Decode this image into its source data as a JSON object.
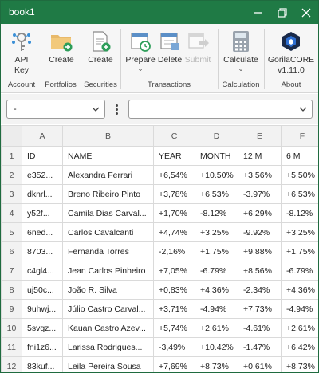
{
  "window": {
    "title": "book1"
  },
  "ribbon": {
    "buttons": {
      "api_key": "API\nKey",
      "portfolios_create": "Create",
      "securities_create": "Create",
      "prepare": "Prepare",
      "delete": "Delete",
      "submit": "Submit",
      "calculate": "Calculate",
      "about": "GorilaCORE\nv1.11.0"
    },
    "groups": {
      "account": "Account",
      "portfolios": "Portfolios",
      "securities": "Securities",
      "transactions": "Transactions",
      "calculation": "Calculation",
      "about": "About"
    },
    "icons": [
      "key-icon",
      "folder-add-icon",
      "document-add-icon",
      "calendar-refresh-icon",
      "calendar-delete-icon",
      "calendar-forward-icon",
      "calculator-icon",
      "gorila-logo"
    ]
  },
  "filters": {
    "left_combo_value": "-",
    "right_combo_value": ""
  },
  "sheet": {
    "columns": [
      "A",
      "B",
      "C",
      "D",
      "E",
      "F"
    ],
    "rows": [
      {
        "num": "1",
        "cells": [
          "ID",
          "NAME",
          "YEAR",
          "MONTH",
          "12 M",
          "6 M"
        ]
      },
      {
        "num": "2",
        "cells": [
          "e352...",
          "Alexandra Ferrari",
          "+6,54%",
          "+10.50%",
          "+3.56%",
          "+5.50%"
        ]
      },
      {
        "num": "3",
        "cells": [
          "dknrl...",
          "Breno Ribeiro Pinto",
          "+3,78%",
          "+6.53%",
          "-3.97%",
          "+6.53%"
        ]
      },
      {
        "num": "4",
        "cells": [
          "y52f...",
          "Camila Dias Carval...",
          "+1,70%",
          "-8.12%",
          "+6.29%",
          "-8.12%"
        ]
      },
      {
        "num": "5",
        "cells": [
          "6ned...",
          "Carlos Cavalcanti",
          "+4,74%",
          "+3.25%",
          "-9.92%",
          "+3.25%"
        ]
      },
      {
        "num": "6",
        "cells": [
          "8703...",
          "Fernanda Torres",
          "-2,16%",
          "+1.75%",
          "+9.88%",
          "+1.75%"
        ]
      },
      {
        "num": "7",
        "cells": [
          "c4gl4...",
          "Jean Carlos Pinheiro",
          "+7,05%",
          "-6.79%",
          "+8.56%",
          "-6.79%"
        ]
      },
      {
        "num": "8",
        "cells": [
          "uj50c...",
          "João R. Silva",
          "+0,83%",
          "+4.36%",
          "-2.34%",
          "+4.36%"
        ]
      },
      {
        "num": "9",
        "cells": [
          "9uhwj...",
          "Júlio Castro Carval...",
          "+3,71%",
          "-4.94%",
          "+7.73%",
          "-4.94%"
        ]
      },
      {
        "num": "10",
        "cells": [
          "5svgz...",
          "Kauan Castro Azev...",
          "+5,74%",
          "+2.61%",
          "-4.61%",
          "+2.61%"
        ]
      },
      {
        "num": "11",
        "cells": [
          "fni1z6...",
          "Larissa Rodrigues...",
          "-3,49%",
          "+10.42%",
          "-1.47%",
          "+6.42%"
        ]
      },
      {
        "num": "12",
        "cells": [
          "83kuf...",
          "Leila Pereira Sousa",
          "+7,69%",
          "+8.73%",
          "+0.61%",
          "+8.73%"
        ]
      }
    ]
  },
  "colors": {
    "titlebar": "#1f7a45",
    "ribbon_bg": "#f6f6f6",
    "header_bg": "#f2f2f2",
    "grid": "#dadada"
  }
}
